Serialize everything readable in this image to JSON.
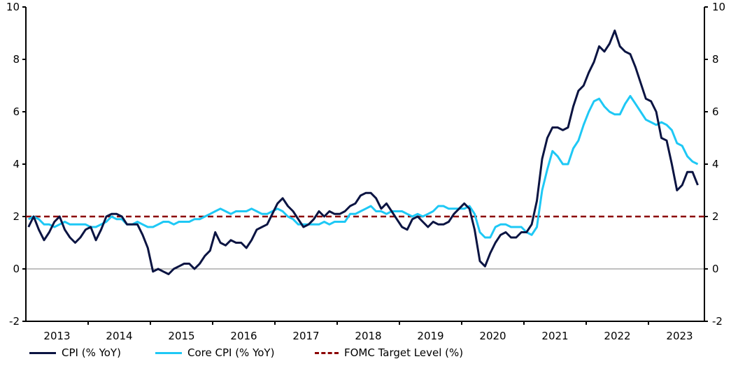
{
  "chart_data": {
    "type": "line",
    "title": "",
    "xlabel": "",
    "ylabel": "",
    "ylim": [
      -2,
      10
    ],
    "yticks": [
      -2,
      0,
      2,
      4,
      6,
      8,
      10
    ],
    "x_tick_labels": [
      "2013",
      "2014",
      "2015",
      "2016",
      "2017",
      "2018",
      "2019",
      "2020",
      "2021",
      "2022",
      "2023"
    ],
    "x_start": "2013-01",
    "x_frequency": "monthly",
    "grid": false,
    "legend_position": "bottom",
    "series": [
      {
        "name": "CPI (% YoY)",
        "color": "#0b1442",
        "values": [
          1.6,
          2.0,
          1.5,
          1.1,
          1.4,
          1.8,
          2.0,
          1.5,
          1.2,
          1.0,
          1.2,
          1.5,
          1.6,
          1.1,
          1.5,
          2.0,
          2.1,
          2.1,
          2.0,
          1.7,
          1.7,
          1.7,
          1.3,
          0.8,
          -0.1,
          0.0,
          -0.1,
          -0.2,
          0.0,
          0.1,
          0.2,
          0.2,
          0.0,
          0.2,
          0.5,
          0.7,
          1.4,
          1.0,
          0.9,
          1.1,
          1.0,
          1.0,
          0.8,
          1.1,
          1.5,
          1.6,
          1.7,
          2.1,
          2.5,
          2.7,
          2.4,
          2.2,
          1.9,
          1.6,
          1.7,
          1.9,
          2.2,
          2.0,
          2.2,
          2.1,
          2.1,
          2.2,
          2.4,
          2.5,
          2.8,
          2.9,
          2.9,
          2.7,
          2.3,
          2.5,
          2.2,
          1.9,
          1.6,
          1.5,
          1.9,
          2.0,
          1.8,
          1.6,
          1.8,
          1.7,
          1.7,
          1.8,
          2.1,
          2.3,
          2.5,
          2.3,
          1.5,
          0.3,
          0.1,
          0.6,
          1.0,
          1.3,
          1.4,
          1.2,
          1.2,
          1.4,
          1.4,
          1.7,
          2.6,
          4.2,
          5.0,
          5.4,
          5.4,
          5.3,
          5.4,
          6.2,
          6.8,
          7.0,
          7.5,
          7.9,
          8.5,
          8.3,
          8.6,
          9.1,
          8.5,
          8.3,
          8.2,
          7.7,
          7.1,
          6.5,
          6.4,
          6.0,
          5.0,
          4.9,
          4.0,
          3.0,
          3.2,
          3.7,
          3.7,
          3.2
        ]
      },
      {
        "name": "Core CPI (% YoY)",
        "color": "#1ec8f5",
        "values": [
          1.9,
          2.0,
          1.9,
          1.7,
          1.7,
          1.6,
          1.7,
          1.8,
          1.7,
          1.7,
          1.7,
          1.7,
          1.6,
          1.6,
          1.7,
          1.8,
          2.0,
          1.9,
          1.9,
          1.7,
          1.7,
          1.8,
          1.7,
          1.6,
          1.6,
          1.7,
          1.8,
          1.8,
          1.7,
          1.8,
          1.8,
          1.8,
          1.9,
          1.9,
          2.0,
          2.1,
          2.2,
          2.3,
          2.2,
          2.1,
          2.2,
          2.2,
          2.2,
          2.3,
          2.2,
          2.1,
          2.1,
          2.2,
          2.3,
          2.2,
          2.0,
          1.9,
          1.7,
          1.7,
          1.7,
          1.7,
          1.7,
          1.8,
          1.7,
          1.8,
          1.8,
          1.8,
          2.1,
          2.1,
          2.2,
          2.3,
          2.4,
          2.2,
          2.2,
          2.1,
          2.2,
          2.2,
          2.2,
          2.1,
          2.0,
          2.1,
          2.0,
          2.1,
          2.2,
          2.4,
          2.4,
          2.3,
          2.3,
          2.3,
          2.3,
          2.4,
          2.1,
          1.4,
          1.2,
          1.2,
          1.6,
          1.7,
          1.7,
          1.6,
          1.6,
          1.6,
          1.4,
          1.3,
          1.6,
          3.0,
          3.8,
          4.5,
          4.3,
          4.0,
          4.0,
          4.6,
          4.9,
          5.5,
          6.0,
          6.4,
          6.5,
          6.2,
          6.0,
          5.9,
          5.9,
          6.3,
          6.6,
          6.3,
          6.0,
          5.7,
          5.6,
          5.5,
          5.6,
          5.5,
          5.3,
          4.8,
          4.7,
          4.3,
          4.1,
          4.0
        ]
      },
      {
        "name": "FOMC Target Level (%)",
        "color": "#8b0000",
        "constant": 2,
        "style": "dashed"
      }
    ]
  }
}
